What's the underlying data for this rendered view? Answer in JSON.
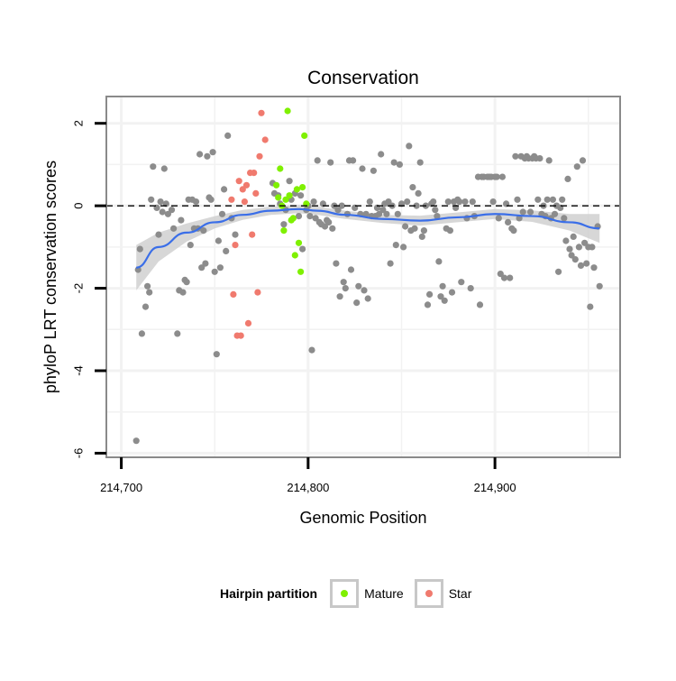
{
  "chart_data": {
    "type": "scatter",
    "title": "Conservation",
    "xlabel": "Genomic Position",
    "ylabel": "phyloP LRT conservation scores",
    "xlim": [
      214692,
      214967
    ],
    "ylim": [
      -6.1,
      2.65
    ],
    "x_ticks": [
      214700,
      214800,
      214900
    ],
    "x_tick_labels": [
      "214,700",
      "214,800",
      "214,900"
    ],
    "y_ticks": [
      -6,
      -4,
      -2,
      0,
      2
    ],
    "y_tick_labels": [
      "-6",
      "-4",
      "-2",
      "0",
      "2"
    ],
    "reference_line": {
      "y": 0,
      "style": "dashed"
    },
    "grid": true,
    "legend": {
      "title": "Hairpin partition",
      "position": "bottom",
      "entries": [
        {
          "label": "Mature",
          "color": "#7ff000"
        },
        {
          "label": "Star",
          "color": "#f07a6e"
        }
      ]
    },
    "colors": {
      "other": "#8c8c8c",
      "mature": "#7ff000",
      "star": "#f07a6e",
      "smooth": "#3a6ee8",
      "band": "#d0d0d0"
    },
    "series": [
      {
        "name": "",
        "group": "other",
        "points": [
          [
            214708,
            -5.7
          ],
          [
            214709,
            -1.55
          ],
          [
            214710,
            -1.05
          ],
          [
            214711,
            -3.1
          ],
          [
            214713,
            -2.45
          ],
          [
            214714,
            -1.95
          ],
          [
            214715,
            -2.1
          ],
          [
            214716,
            0.15
          ],
          [
            214717,
            0.95
          ],
          [
            214719,
            -0.05
          ],
          [
            214720,
            -0.7
          ],
          [
            214721,
            0.1
          ],
          [
            214722,
            -0.15
          ],
          [
            214723,
            0.9
          ],
          [
            214724,
            0.05
          ],
          [
            214725,
            -0.2
          ],
          [
            214727,
            -0.1
          ],
          [
            214728,
            -0.55
          ],
          [
            214730,
            -3.1
          ],
          [
            214731,
            -2.05
          ],
          [
            214732,
            -0.35
          ],
          [
            214733,
            -2.1
          ],
          [
            214734,
            -1.8
          ],
          [
            214735,
            -1.85
          ],
          [
            214736,
            0.15
          ],
          [
            214737,
            -0.95
          ],
          [
            214738,
            0.15
          ],
          [
            214739,
            -0.55
          ],
          [
            214740,
            0.1
          ],
          [
            214741,
            -0.55
          ],
          [
            214742,
            1.25
          ],
          [
            214743,
            -1.5
          ],
          [
            214744,
            -0.6
          ],
          [
            214745,
            -1.4
          ],
          [
            214746,
            1.2
          ],
          [
            214747,
            0.2
          ],
          [
            214748,
            0.15
          ],
          [
            214749,
            1.3
          ],
          [
            214750,
            -1.6
          ],
          [
            214751,
            -3.6
          ],
          [
            214752,
            -0.85
          ],
          [
            214753,
            -1.5
          ],
          [
            214754,
            -0.2
          ],
          [
            214755,
            0.4
          ],
          [
            214756,
            -1.1
          ],
          [
            214757,
            1.7
          ],
          [
            214759,
            -0.3
          ],
          [
            214761,
            -0.7
          ],
          [
            214781,
            0.55
          ],
          [
            214782,
            0.3
          ],
          [
            214784,
            0.25
          ],
          [
            214785,
            0.05
          ],
          [
            214787,
            -0.45
          ],
          [
            214788,
            -0.1
          ],
          [
            214790,
            0.6
          ],
          [
            214791,
            0.15
          ],
          [
            214793,
            0.3
          ],
          [
            214795,
            -0.25
          ],
          [
            214796,
            0.25
          ],
          [
            214797,
            -1.05
          ],
          [
            214799,
            -0.1
          ],
          [
            214800,
            0.0
          ],
          [
            214801,
            -0.25
          ],
          [
            214802,
            -3.5
          ],
          [
            214803,
            0.1
          ],
          [
            214804,
            -0.3
          ],
          [
            214805,
            1.1
          ],
          [
            214806,
            -0.4
          ],
          [
            214807,
            -0.45
          ],
          [
            214808,
            0.05
          ],
          [
            214809,
            -0.5
          ],
          [
            214810,
            -0.35
          ],
          [
            214811,
            -0.4
          ],
          [
            214812,
            1.05
          ],
          [
            214813,
            -0.55
          ],
          [
            214814,
            0.0
          ],
          [
            214815,
            -1.4
          ],
          [
            214816,
            -0.1
          ],
          [
            214817,
            -2.2
          ],
          [
            214818,
            0.0
          ],
          [
            214819,
            -1.85
          ],
          [
            214820,
            -2.0
          ],
          [
            214821,
            -0.2
          ],
          [
            214822,
            1.1
          ],
          [
            214823,
            -1.55
          ],
          [
            214824,
            1.1
          ],
          [
            214825,
            -0.05
          ],
          [
            214826,
            -2.35
          ],
          [
            214827,
            -1.95
          ],
          [
            214828,
            -0.2
          ],
          [
            214829,
            0.9
          ],
          [
            214830,
            -2.05
          ],
          [
            214831,
            -0.2
          ],
          [
            214832,
            -2.25
          ],
          [
            214833,
            0.1
          ],
          [
            214834,
            -0.25
          ],
          [
            214835,
            0.85
          ],
          [
            214836,
            -0.25
          ],
          [
            214837,
            -0.05
          ],
          [
            214838,
            -0.2
          ],
          [
            214839,
            1.25
          ],
          [
            214840,
            -0.1
          ],
          [
            214841,
            0.05
          ],
          [
            214842,
            -0.2
          ],
          [
            214843,
            0.1
          ],
          [
            214844,
            -1.4
          ],
          [
            214845,
            0.0
          ],
          [
            214846,
            1.05
          ],
          [
            214847,
            -0.95
          ],
          [
            214848,
            -0.2
          ],
          [
            214849,
            1.0
          ],
          [
            214850,
            0.05
          ],
          [
            214851,
            -1.0
          ],
          [
            214852,
            -0.5
          ],
          [
            214853,
            0.1
          ],
          [
            214854,
            1.45
          ],
          [
            214855,
            -0.6
          ],
          [
            214856,
            0.45
          ],
          [
            214857,
            -0.55
          ],
          [
            214858,
            0.0
          ],
          [
            214859,
            0.3
          ],
          [
            214860,
            1.05
          ],
          [
            214861,
            -0.75
          ],
          [
            214862,
            -0.6
          ],
          [
            214863,
            0.0
          ],
          [
            214864,
            -2.4
          ],
          [
            214865,
            -2.15
          ],
          [
            214866,
            0.05
          ],
          [
            214867,
            0.1
          ],
          [
            214868,
            -0.1
          ],
          [
            214869,
            -0.25
          ],
          [
            214870,
            -1.35
          ],
          [
            214871,
            -2.2
          ],
          [
            214872,
            -1.95
          ],
          [
            214873,
            -2.3
          ],
          [
            214874,
            -0.55
          ],
          [
            214875,
            0.1
          ],
          [
            214876,
            -0.6
          ],
          [
            214877,
            -2.1
          ],
          [
            214878,
            0.1
          ],
          [
            214879,
            -0.05
          ],
          [
            214880,
            0.15
          ],
          [
            214881,
            0.1
          ],
          [
            214882,
            -1.85
          ],
          [
            214884,
            0.1
          ],
          [
            214885,
            -0.3
          ],
          [
            214887,
            -2.0
          ],
          [
            214888,
            0.1
          ],
          [
            214889,
            -0.25
          ],
          [
            214891,
            0.7
          ],
          [
            214892,
            -2.4
          ],
          [
            214893,
            0.7
          ],
          [
            214894,
            0.7
          ],
          [
            214896,
            0.7
          ],
          [
            214897,
            0.7
          ],
          [
            214898,
            0.7
          ],
          [
            214899,
            0.1
          ],
          [
            214900,
            0.7
          ],
          [
            214901,
            0.7
          ],
          [
            214902,
            -0.3
          ],
          [
            214903,
            -1.65
          ],
          [
            214904,
            0.7
          ],
          [
            214905,
            -1.75
          ],
          [
            214906,
            0.05
          ],
          [
            214907,
            -0.4
          ],
          [
            214908,
            -1.75
          ],
          [
            214909,
            -0.55
          ],
          [
            214910,
            -0.6
          ],
          [
            214911,
            1.2
          ],
          [
            214912,
            0.15
          ],
          [
            214913,
            -0.3
          ],
          [
            214914,
            1.2
          ],
          [
            214915,
            -0.15
          ],
          [
            214916,
            1.15
          ],
          [
            214917,
            1.2
          ],
          [
            214918,
            1.15
          ],
          [
            214919,
            -0.15
          ],
          [
            214920,
            1.15
          ],
          [
            214921,
            1.2
          ],
          [
            214922,
            1.15
          ],
          [
            214923,
            0.15
          ],
          [
            214924,
            1.15
          ],
          [
            214925,
            -0.2
          ],
          [
            214926,
            0.0
          ],
          [
            214927,
            -0.25
          ],
          [
            214928,
            0.15
          ],
          [
            214929,
            1.1
          ],
          [
            214930,
            -0.3
          ],
          [
            214931,
            0.15
          ],
          [
            214932,
            -0.2
          ],
          [
            214933,
            0.0
          ],
          [
            214934,
            -1.6
          ],
          [
            214935,
            -0.05
          ],
          [
            214936,
            0.15
          ],
          [
            214937,
            -0.3
          ],
          [
            214938,
            -0.85
          ],
          [
            214939,
            0.65
          ],
          [
            214940,
            -1.05
          ],
          [
            214941,
            -1.2
          ],
          [
            214942,
            -0.75
          ],
          [
            214943,
            -1.3
          ],
          [
            214944,
            0.95
          ],
          [
            214945,
            -1.0
          ],
          [
            214946,
            -1.45
          ],
          [
            214947,
            1.1
          ],
          [
            214948,
            -0.9
          ],
          [
            214949,
            -1.4
          ],
          [
            214950,
            -1.0
          ],
          [
            214951,
            -2.45
          ],
          [
            214952,
            -1.0
          ],
          [
            214953,
            -1.5
          ],
          [
            214955,
            -0.5
          ],
          [
            214956,
            -1.95
          ]
        ]
      },
      {
        "name": "Mature",
        "group": "mature",
        "points": [
          [
            214783,
            0.5
          ],
          [
            214784,
            0.2
          ],
          [
            214785,
            0.9
          ],
          [
            214786,
            0.0
          ],
          [
            214787,
            -0.6
          ],
          [
            214788,
            0.15
          ],
          [
            214789,
            2.3
          ],
          [
            214790,
            0.25
          ],
          [
            214791,
            -0.35
          ],
          [
            214792,
            -0.3
          ],
          [
            214793,
            -1.2
          ],
          [
            214794,
            0.4
          ],
          [
            214795,
            -0.9
          ],
          [
            214796,
            -1.6
          ],
          [
            214797,
            0.45
          ],
          [
            214798,
            1.7
          ],
          [
            214799,
            0.05
          ]
        ]
      },
      {
        "name": "Star",
        "group": "star",
        "points": [
          [
            214759,
            0.15
          ],
          [
            214760,
            -2.15
          ],
          [
            214761,
            -0.95
          ],
          [
            214762,
            -3.15
          ],
          [
            214763,
            0.6
          ],
          [
            214764,
            -3.15
          ],
          [
            214765,
            0.4
          ],
          [
            214766,
            0.1
          ],
          [
            214767,
            0.5
          ],
          [
            214768,
            -2.85
          ],
          [
            214769,
            0.8
          ],
          [
            214770,
            -0.7
          ],
          [
            214771,
            0.8
          ],
          [
            214772,
            0.3
          ],
          [
            214773,
            -2.1
          ],
          [
            214774,
            1.2
          ],
          [
            214775,
            2.25
          ],
          [
            214777,
            1.6
          ]
        ]
      }
    ],
    "smooth": {
      "x": [
        214708,
        214720,
        214735,
        214750,
        214765,
        214780,
        214795,
        214805,
        214820,
        214840,
        214860,
        214880,
        214900,
        214920,
        214940,
        214956
      ],
      "y": [
        -1.5,
        -1.0,
        -0.65,
        -0.4,
        -0.22,
        -0.12,
        -0.08,
        -0.12,
        -0.22,
        -0.32,
        -0.36,
        -0.28,
        -0.2,
        -0.25,
        -0.4,
        -0.55
      ],
      "se": [
        0.55,
        0.35,
        0.22,
        0.15,
        0.12,
        0.1,
        0.1,
        0.1,
        0.1,
        0.1,
        0.12,
        0.12,
        0.12,
        0.14,
        0.2,
        0.35
      ]
    }
  }
}
